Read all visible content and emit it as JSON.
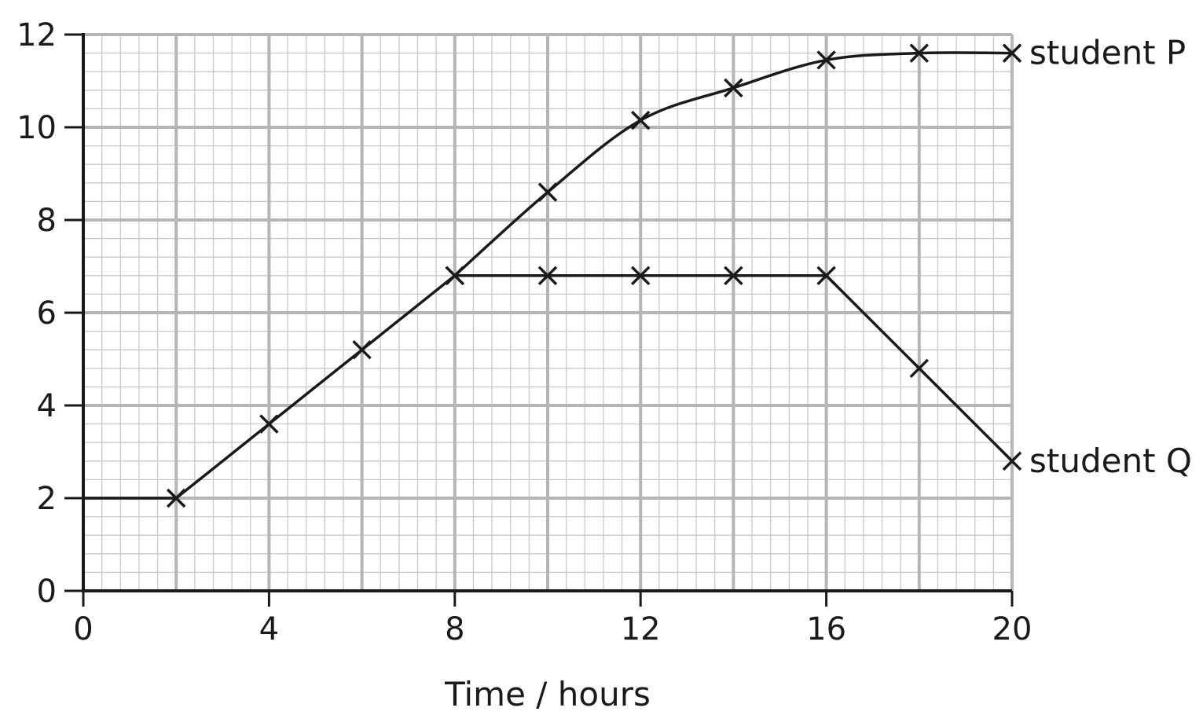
{
  "chart_data": {
    "type": "line",
    "xlabel": "Time / hours",
    "ylabel": "",
    "title": "",
    "xlim": [
      0,
      20
    ],
    "ylim": [
      0,
      12
    ],
    "x_ticks": [
      "0",
      "4",
      "8",
      "12",
      "16",
      "20"
    ],
    "y_ticks": [
      "0",
      "2",
      "4",
      "6",
      "8",
      "10",
      "12"
    ],
    "grid": true,
    "colors": {
      "line": "#1a1a1a",
      "grid_minor": "#c9c9c9",
      "grid_major": "#b5b5b5",
      "axis": "#1a1a1a"
    },
    "series": [
      {
        "name": "student P",
        "x": [
          0,
          2,
          4,
          6,
          8,
          10,
          12,
          14,
          16,
          18,
          20
        ],
        "y": [
          2.0,
          2.0,
          3.6,
          5.2,
          6.8,
          8.6,
          10.15,
          10.85,
          11.45,
          11.6,
          11.6
        ],
        "markers_from_index": 1,
        "smooth": true
      },
      {
        "name": "student Q",
        "x": [
          8,
          10,
          12,
          14,
          16,
          18,
          20
        ],
        "y": [
          6.8,
          6.8,
          6.8,
          6.8,
          6.8,
          4.8,
          2.8
        ],
        "markers_from_index": 0,
        "smooth": false
      }
    ]
  }
}
